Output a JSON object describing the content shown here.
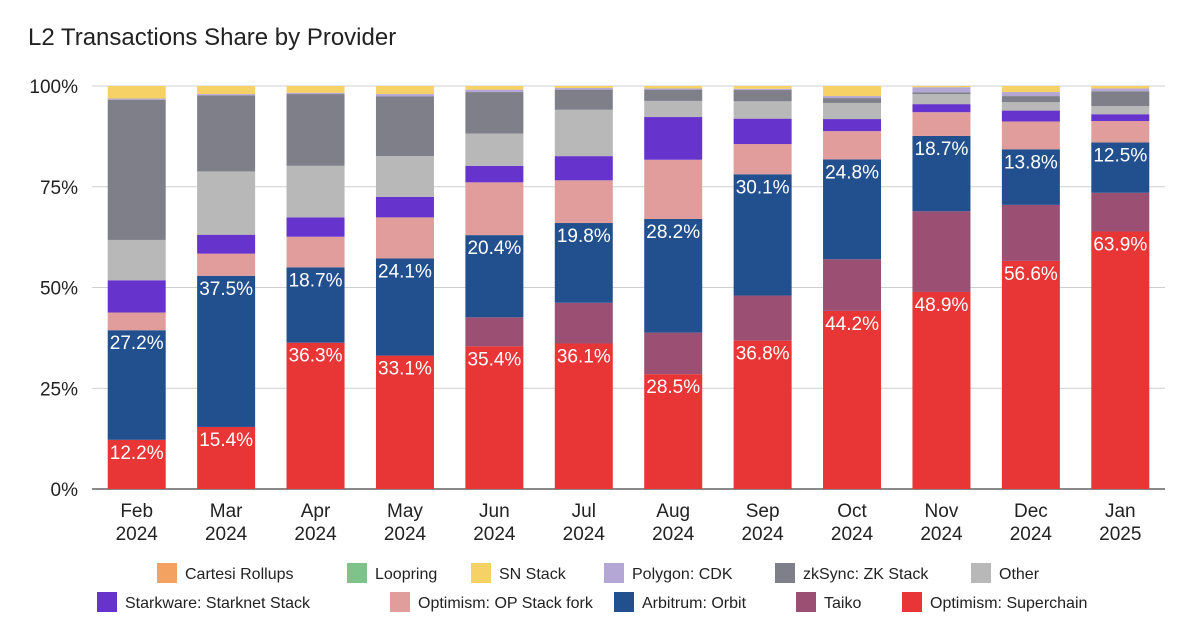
{
  "chart_data": {
    "type": "bar",
    "stacked": true,
    "title": "L2 Transactions Share by Provider",
    "xlabel": "",
    "ylabel": "",
    "ylim": [
      0,
      100
    ],
    "y_ticks": [
      "0%",
      "25%",
      "50%",
      "75%",
      "100%"
    ],
    "grid": true,
    "legend_position": "bottom",
    "categories": [
      [
        "Feb",
        "2024"
      ],
      [
        "Mar",
        "2024"
      ],
      [
        "Apr",
        "2024"
      ],
      [
        "May",
        "2024"
      ],
      [
        "Jun",
        "2024"
      ],
      [
        "Jul",
        "2024"
      ],
      [
        "Aug",
        "2024"
      ],
      [
        "Sep",
        "2024"
      ],
      [
        "Oct",
        "2024"
      ],
      [
        "Nov",
        "2024"
      ],
      [
        "Dec",
        "2024"
      ],
      [
        "Jan",
        "2025"
      ]
    ],
    "series": [
      {
        "name": "Optimism: Superchain",
        "color": "#e83535",
        "values": [
          12.2,
          15.4,
          36.3,
          33.1,
          35.4,
          36.1,
          28.5,
          36.8,
          44.2,
          48.9,
          56.6,
          63.9
        ],
        "labels": [
          "12.2%",
          "15.4%",
          "36.3%",
          "33.1%",
          "35.4%",
          "36.1%",
          "28.5%",
          "36.8%",
          "44.2%",
          "48.9%",
          "56.6%",
          "63.9%"
        ]
      },
      {
        "name": "Taiko",
        "color": "#9b4f72",
        "values": [
          0,
          0,
          0,
          0,
          7.2,
          10.1,
          10.3,
          11.2,
          12.8,
          20.0,
          13.9,
          9.6
        ],
        "labels": [
          "",
          "",
          "",
          "",
          "",
          "",
          "",
          "",
          "",
          "",
          "",
          ""
        ]
      },
      {
        "name": "Arbitrum: Orbit",
        "color": "#22508f",
        "values": [
          27.2,
          37.5,
          18.7,
          24.1,
          20.4,
          19.8,
          28.2,
          30.1,
          24.8,
          18.7,
          13.8,
          12.5
        ],
        "labels": [
          "27.2%",
          "37.5%",
          "18.7%",
          "24.1%",
          "20.4%",
          "19.8%",
          "28.2%",
          "30.1%",
          "24.8%",
          "18.7%",
          "13.8%",
          "12.5%"
        ]
      },
      {
        "name": "Optimism: OP Stack fork",
        "color": "#e09d9b",
        "values": [
          4.4,
          5.5,
          7.6,
          10.2,
          13.1,
          10.6,
          14.7,
          7.5,
          7.0,
          5.9,
          6.9,
          5.3
        ],
        "labels": [
          "",
          "",
          "",
          "",
          "",
          "",
          "",
          "",
          "",
          "",
          "",
          ""
        ]
      },
      {
        "name": "Starkware: Starknet Stack",
        "color": "#6633cc",
        "values": [
          8.0,
          4.7,
          4.8,
          5.1,
          4.1,
          6.0,
          10.6,
          6.3,
          3.0,
          2.0,
          2.7,
          1.7
        ],
        "labels": [
          "",
          "",
          "",
          "",
          "",
          "",
          "",
          "",
          "",
          "",
          "",
          ""
        ]
      },
      {
        "name": "Other",
        "color": "#b8b8b8",
        "values": [
          10.0,
          15.7,
          12.8,
          10.1,
          8.0,
          11.5,
          4.0,
          4.3,
          4.0,
          2.5,
          2.1,
          2.0
        ],
        "labels": [
          "",
          "",
          "",
          "",
          "",
          "",
          "",
          "",
          "",
          "",
          "",
          ""
        ]
      },
      {
        "name": "zkSync: ZK Stack",
        "color": "#7f7f8a",
        "values": [
          34.8,
          18.9,
          17.8,
          14.8,
          10.3,
          5.0,
          2.8,
          2.8,
          1.2,
          0.4,
          1.5,
          3.7
        ],
        "labels": [
          "",
          "",
          "",
          "",
          "",
          "",
          "",
          "",
          "",
          "",
          "",
          ""
        ]
      },
      {
        "name": "Polygon: CDK",
        "color": "#b4a7d6",
        "values": [
          0.3,
          0.3,
          0.3,
          0.6,
          0.6,
          0.4,
          0.3,
          0.3,
          0.5,
          1.3,
          1.0,
          0.7
        ],
        "labels": [
          "",
          "",
          "",
          "",
          "",
          "",
          "",
          "",
          "",
          "",
          "",
          ""
        ]
      },
      {
        "name": "SN Stack",
        "color": "#f6d165",
        "values": [
          3.1,
          2.0,
          1.7,
          2.0,
          0.9,
          0.5,
          0.6,
          0.7,
          2.5,
          0.3,
          1.5,
          0.6
        ],
        "labels": [
          "",
          "",
          "",
          "",
          "",
          "",
          "",
          "",
          "",
          "",
          "",
          ""
        ]
      },
      {
        "name": "Loopring",
        "color": "#7fc28a",
        "values": [
          0,
          0,
          0,
          0,
          0,
          0,
          0,
          0,
          0,
          0,
          0,
          0
        ],
        "labels": [
          "",
          "",
          "",
          "",
          "",
          "",
          "",
          "",
          "",
          "",
          "",
          ""
        ]
      },
      {
        "name": "Cartesi Rollups",
        "color": "#f4a261",
        "values": [
          0,
          0,
          0,
          0,
          0,
          0,
          0,
          0,
          0,
          0,
          0,
          0
        ],
        "labels": [
          "",
          "",
          "",
          "",
          "",
          "",
          "",
          "",
          "",
          "",
          "",
          ""
        ]
      }
    ],
    "legend": [
      {
        "name": "Cartesi Rollups",
        "color": "#f4a261"
      },
      {
        "name": "Loopring",
        "color": "#7fc28a"
      },
      {
        "name": "SN Stack",
        "color": "#f6d165"
      },
      {
        "name": "Polygon: CDK",
        "color": "#b4a7d6"
      },
      {
        "name": "zkSync: ZK Stack",
        "color": "#7f7f8a"
      },
      {
        "name": "Other",
        "color": "#b8b8b8"
      },
      {
        "name": "Starkware: Starknet Stack",
        "color": "#6633cc"
      },
      {
        "name": "Optimism: OP Stack fork",
        "color": "#e09d9b"
      },
      {
        "name": "Arbitrum: Orbit",
        "color": "#22508f"
      },
      {
        "name": "Taiko",
        "color": "#9b4f72"
      },
      {
        "name": "Optimism: Superchain",
        "color": "#e83535"
      }
    ]
  }
}
